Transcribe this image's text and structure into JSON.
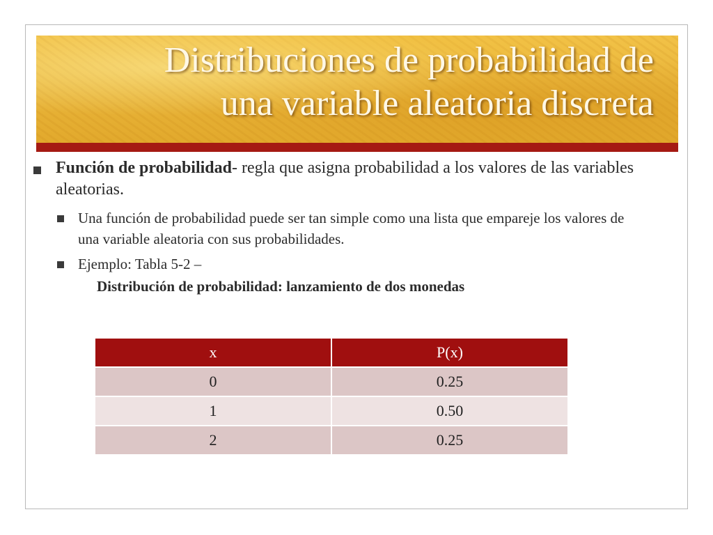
{
  "slide": {
    "title_line1": "Distribuciones de probabilidad de",
    "title_line2": "una variable aleatoria discreta",
    "bullet1": {
      "bold": "Función de probabilidad",
      "text": "- regla que asigna probabilidad a los valores de las variables aleatorias."
    },
    "sub_bullets": [
      "Una función de probabilidad puede ser tan simple como una lista que empareje los valores de una variable aleatoria con sus probabilidades.",
      "Ejemplo:  Tabla 5-2 –"
    ],
    "table_caption": "Distribución de probabilidad:  lanzamiento de dos monedas",
    "table": {
      "headers": [
        "x",
        "P(x)"
      ],
      "rows": [
        [
          "0",
          "0.25"
        ],
        [
          "1",
          "0.50"
        ],
        [
          "2",
          "0.25"
        ]
      ]
    },
    "colors": {
      "accent_red": "#a51a13",
      "header_red": "#a00f0f",
      "band_gold": "#e9b53a"
    }
  }
}
